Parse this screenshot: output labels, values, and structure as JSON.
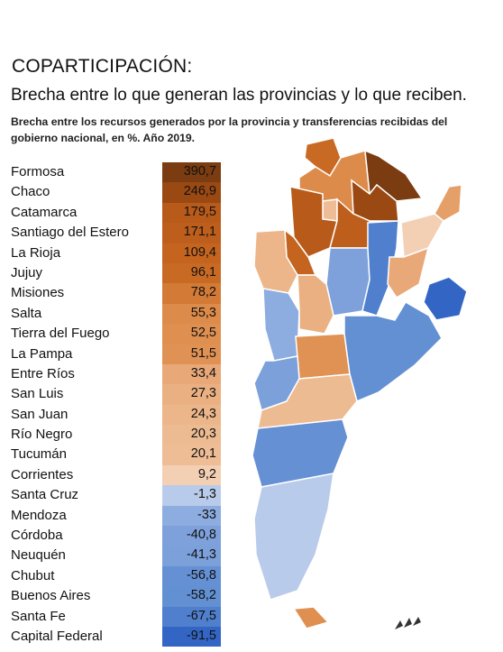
{
  "header": {
    "title": "COPARTICIPACIÓN:",
    "subtitle": "Brecha entre lo que generan las provincias y lo que reciben.",
    "note": "Brecha entre los recursos generados por la provincia y transferencias recibidas del gobierno nacional, en %. Año 2019."
  },
  "colors": {
    "scale": [
      "#7a3c10",
      "#9a4912",
      "#b85a1a",
      "#c4641f",
      "#cc6e28",
      "#d27a36",
      "#dd8b4a",
      "#e59f68",
      "#eaae80",
      "#f0c4a4",
      "#f5d8c4",
      "#b9cbea",
      "#9cb6e3",
      "#7ea1db",
      "#6590d4",
      "#4f7fcd",
      "#3d6fc7",
      "#3366c4"
    ]
  },
  "chart_data": {
    "type": "table",
    "columns": [
      "provincia",
      "brecha"
    ],
    "categories": [
      "Formosa",
      "Chaco",
      "Catamarca",
      "Santiago del Estero",
      "La Rioja",
      "Jujuy",
      "Misiones",
      "Salta",
      "Tierra del Fuego",
      "La Pampa",
      "Entre Ríos",
      "San Luis",
      "San Juan",
      "Río Negro",
      "Tucumán",
      "Corrientes",
      "Santa Cruz",
      "Mendoza",
      "Córdoba",
      "Neuquén",
      "Chubut",
      "Buenos Aires",
      "Santa Fe",
      "Capital Federal"
    ],
    "labels": [
      "390,7",
      "246,9",
      "179,5",
      "171,1",
      "109,4",
      "96,1",
      "78,2",
      "55,3",
      "52,5",
      "51,5",
      "33,4",
      "27,3",
      "24,3",
      "20,3",
      "20,1",
      "9,2",
      "-1,3",
      "-33",
      "-40,8",
      "-41,3",
      "-56,8",
      "-58,2",
      "-67,5",
      "-91,5"
    ],
    "values": [
      390.7,
      246.9,
      179.5,
      171.1,
      109.4,
      96.1,
      78.2,
      55.3,
      52.5,
      51.5,
      33.4,
      27.3,
      24.3,
      20.3,
      20.1,
      9.2,
      -1.3,
      -33,
      -40.8,
      -41.3,
      -56.8,
      -58.2,
      -67.5,
      -91.5
    ],
    "colors": [
      "#7a3c10",
      "#9a4912",
      "#b85a1a",
      "#bd5e1c",
      "#c4641f",
      "#c96a24",
      "#d27a36",
      "#dd8b4a",
      "#df8f50",
      "#e09254",
      "#e8a878",
      "#eab082",
      "#ecb68a",
      "#edbb92",
      "#eebd96",
      "#f3cfb4",
      "#b9cbea",
      "#8dacdf",
      "#7ea1db",
      "#7ca0da",
      "#6590d4",
      "#6390d3",
      "#4f7fcd",
      "#3366c4"
    ]
  }
}
